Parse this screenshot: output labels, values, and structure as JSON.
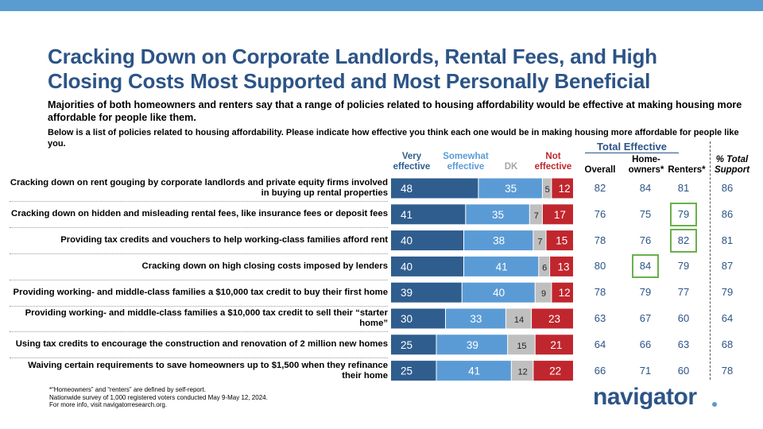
{
  "title": "Cracking Down on Corporate Landlords, Rental Fees, and High Closing Costs Most Supported and Most Personally Beneficial",
  "subtitle": "Majorities of both homeowners and renters say that a range of policies related to housing affordability would be effective at making housing more affordable for people like them.",
  "question": "Below is a list of policies related to housing affordability. Please indicate how effective you think each one would be in making housing more affordable for people like you.",
  "headers": {
    "very": "Very effective",
    "somewhat": "Somewhat effective",
    "dk": "DK",
    "not": "Not effective",
    "total_effective": "Total Effective",
    "overall": "Overall",
    "homeowners": "Home-owners*",
    "renters": "Renters*",
    "pct_support": "% Total Support"
  },
  "colors": {
    "very": "#2f5d8e",
    "somewhat": "#5b9bd5",
    "dk": "#bfbfbf",
    "not": "#c0262d",
    "accent": "#2c5487",
    "highlight": "#6ab04c"
  },
  "chart_data": {
    "type": "bar",
    "stacked": true,
    "orientation": "horizontal",
    "categories": [
      "Cracking down on rent gouging by corporate landlords and private equity firms involved in buying up rental properties",
      "Cracking down on hidden and misleading rental fees, like insurance fees or deposit fees",
      "Providing tax credits and vouchers to help working-class families afford rent",
      "Cracking down on high closing costs imposed by lenders",
      "Providing working- and middle-class families a $10,000 tax credit to buy their first home",
      "Providing working- and middle-class families a $10,000 tax credit to sell their “starter home”",
      "Using tax credits to encourage the construction and renovation of 2 million new homes",
      "Waiving certain requirements to save homeowners up to $1,500 when they refinance their home"
    ],
    "series": [
      {
        "name": "Very effective",
        "values": [
          48,
          41,
          40,
          40,
          39,
          30,
          25,
          25
        ]
      },
      {
        "name": "Somewhat effective",
        "values": [
          35,
          35,
          38,
          41,
          40,
          33,
          39,
          41
        ]
      },
      {
        "name": "DK",
        "values": [
          5,
          7,
          7,
          6,
          9,
          14,
          15,
          12
        ]
      },
      {
        "name": "Not effective",
        "values": [
          12,
          17,
          15,
          13,
          12,
          23,
          21,
          22
        ]
      }
    ],
    "total_effective": {
      "overall": [
        82,
        76,
        78,
        80,
        78,
        63,
        64,
        66
      ],
      "homeowners": [
        84,
        75,
        76,
        84,
        79,
        67,
        66,
        71
      ],
      "renters": [
        81,
        79,
        82,
        79,
        77,
        60,
        63,
        60
      ]
    },
    "pct_total_support": [
      86,
      86,
      81,
      87,
      79,
      64,
      68,
      78
    ],
    "highlighted": [
      {
        "column": "renters",
        "row": 1
      },
      {
        "column": "renters",
        "row": 2
      },
      {
        "column": "homeowners",
        "row": 3
      }
    ]
  },
  "footnote": [
    "*“Homeowners” and “renters” are defined by self-report.",
    "Nationwide survey of 1,000 registered voters conducted May 9-May 12, 2024.",
    "For more info, visit navigatorresearch.org."
  ],
  "logo": "navigator"
}
